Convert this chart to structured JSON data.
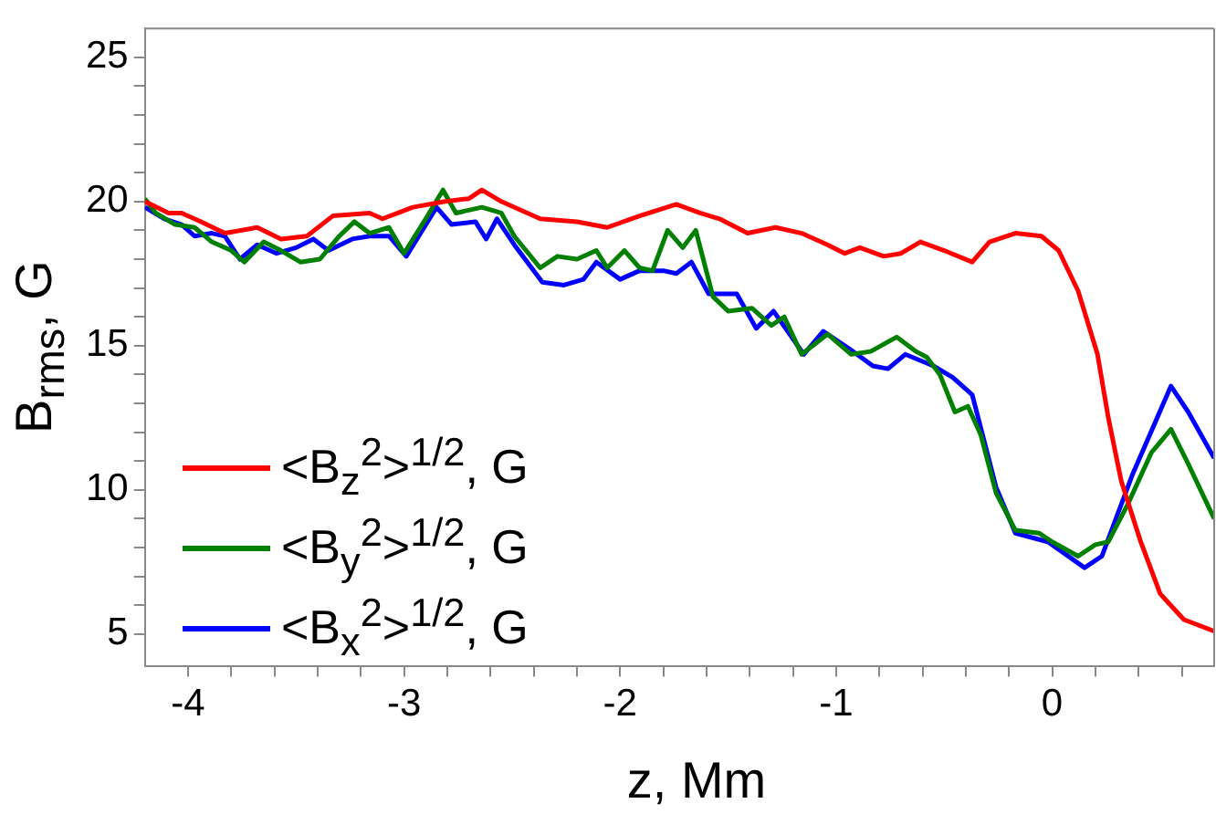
{
  "chart_data": {
    "type": "line",
    "xlabel": "z, Mm",
    "ylabel": "B$_{rms}$, G",
    "xlim": [
      -4.2,
      0.75
    ],
    "ylim": [
      3.9,
      26
    ],
    "xticks": [
      -4,
      {
        "value": -3.8,
        "label": null
      },
      {
        "value": -3.6,
        "label": null
      },
      {
        "value": -3.4,
        "label": null
      },
      {
        "value": -3.2,
        "label": null
      },
      -3,
      {
        "value": -2.8,
        "label": null
      },
      {
        "value": -2.6,
        "label": null
      },
      {
        "value": -2.4,
        "label": null
      },
      {
        "value": -2.2,
        "label": null
      },
      -2,
      {
        "value": -1.8,
        "label": null
      },
      {
        "value": -1.6,
        "label": null
      },
      {
        "value": -1.4,
        "label": null
      },
      {
        "value": -1.2,
        "label": null
      },
      -1,
      {
        "value": -0.8,
        "label": null
      },
      {
        "value": -0.6,
        "label": null
      },
      {
        "value": -0.4,
        "label": null
      },
      {
        "value": -0.2,
        "label": null
      },
      0,
      {
        "value": 0.2,
        "label": null
      },
      {
        "value": 0.4,
        "label": null
      },
      {
        "value": 0.6,
        "label": null
      }
    ],
    "yticks": [
      5,
      {
        "value": 6,
        "label": null
      },
      {
        "value": 7,
        "label": null
      },
      {
        "value": 8,
        "label": null
      },
      {
        "value": 9,
        "label": null
      },
      10,
      {
        "value": 11,
        "label": null
      },
      {
        "value": 12,
        "label": null
      },
      {
        "value": 13,
        "label": null
      },
      {
        "value": 14,
        "label": null
      },
      15,
      {
        "value": 16,
        "label": null
      },
      {
        "value": 17,
        "label": null
      },
      {
        "value": 18,
        "label": null
      },
      {
        "value": 19,
        "label": null
      },
      20,
      {
        "value": 21,
        "label": null
      },
      {
        "value": 22,
        "label": null
      },
      {
        "value": 23,
        "label": null
      },
      {
        "value": 24,
        "label": null
      },
      25
    ],
    "grid": false,
    "legend": "bottom left",
    "marker": "none",
    "line_style": "solid",
    "series": [
      {
        "name": "<B$_{z}$$^{2}$>$^{1/2}$, G",
        "color": "#ff0000",
        "x": [
          -4.2,
          -4.09,
          -4.03,
          -3.94,
          -3.83,
          -3.68,
          -3.57,
          -3.45,
          -3.33,
          -3.16,
          -3.1,
          -2.96,
          -2.81,
          -2.7,
          -2.64,
          -2.55,
          -2.37,
          -2.2,
          -2.06,
          -1.91,
          -1.74,
          -1.63,
          -1.54,
          -1.41,
          -1.28,
          -1.16,
          -1.04,
          -0.96,
          -0.89,
          -0.78,
          -0.7,
          -0.61,
          -0.5,
          -0.37,
          -0.29,
          -0.17,
          -0.05,
          0.03,
          0.12,
          0.21,
          0.26,
          0.32,
          0.41,
          0.5,
          0.61,
          0.75
        ],
        "values": [
          20,
          19.6,
          19.6,
          19.3,
          18.9,
          19.1,
          18.7,
          18.8,
          19.5,
          19.6,
          19.4,
          19.8,
          20,
          20.1,
          20.4,
          20,
          19.4,
          19.3,
          19.1,
          19.5,
          19.9,
          19.6,
          19.4,
          18.9,
          19.1,
          18.9,
          18.5,
          18.2,
          18.4,
          18.1,
          18.2,
          18.6,
          18.3,
          17.9,
          18.6,
          18.9,
          18.8,
          18.3,
          16.9,
          14.7,
          12.5,
          10.3,
          8.2,
          6.4,
          5.5,
          5.1
        ]
      },
      {
        "name": "<B$_{y}$$^{2}$>$^{1/2}$, G",
        "color": "#008000",
        "x": [
          -4.2,
          -4.15,
          -4.06,
          -3.97,
          -3.89,
          -3.8,
          -3.74,
          -3.65,
          -3.57,
          -3.48,
          -3.39,
          -3.3,
          -3.23,
          -3.16,
          -3.07,
          -3,
          -2.9,
          -2.82,
          -2.76,
          -2.64,
          -2.55,
          -2.49,
          -2.37,
          -2.29,
          -2.2,
          -2.11,
          -2.06,
          -1.98,
          -1.91,
          -1.85,
          -1.78,
          -1.71,
          -1.65,
          -1.57,
          -1.5,
          -1.39,
          -1.3,
          -1.24,
          -1.16,
          -1.04,
          -0.93,
          -0.84,
          -0.72,
          -0.63,
          -0.58,
          -0.52,
          -0.45,
          -0.39,
          -0.33,
          -0.26,
          -0.17,
          -0.06,
          0,
          0.12,
          0.2,
          0.26,
          0.35,
          0.46,
          0.55,
          0.63,
          0.75
        ],
        "values": [
          20.1,
          19.6,
          19.2,
          19.1,
          18.6,
          18.3,
          17.9,
          18.6,
          18.3,
          17.9,
          18,
          18.8,
          19.3,
          18.9,
          19.1,
          18.2,
          19.4,
          20.4,
          19.6,
          19.8,
          19.6,
          18.8,
          17.7,
          18.1,
          18,
          18.3,
          17.7,
          18.3,
          17.7,
          17.6,
          19,
          18.4,
          19,
          16.7,
          16.2,
          16.3,
          15.7,
          16,
          14.7,
          15.4,
          14.7,
          14.8,
          15.3,
          14.8,
          14.6,
          14,
          12.7,
          12.9,
          11.9,
          9.9,
          8.6,
          8.5,
          8.2,
          7.7,
          8.1,
          8.2,
          9.5,
          11.3,
          12.1,
          10.9,
          9
        ]
      },
      {
        "name": "<B$_{x}$$^{2}$>$^{1/2}$, G",
        "color": "#0000ff",
        "x": [
          -4.2,
          -4.11,
          -4.03,
          -3.97,
          -3.89,
          -3.83,
          -3.76,
          -3.68,
          -3.59,
          -3.5,
          -3.42,
          -3.35,
          -3.24,
          -3.16,
          -3.07,
          -2.99,
          -2.85,
          -2.78,
          -2.67,
          -2.62,
          -2.57,
          -2.49,
          -2.36,
          -2.26,
          -2.17,
          -2.11,
          -2,
          -1.91,
          -1.8,
          -1.74,
          -1.67,
          -1.59,
          -1.46,
          -1.37,
          -1.29,
          -1.15,
          -1.06,
          -0.94,
          -0.83,
          -0.76,
          -0.68,
          -0.55,
          -0.46,
          -0.37,
          -0.26,
          -0.17,
          -0.02,
          0.15,
          0.23,
          0.37,
          0.55,
          0.63,
          0.75
        ],
        "values": [
          19.8,
          19.4,
          19.2,
          18.8,
          18.9,
          18.8,
          18,
          18.5,
          18.2,
          18.4,
          18.7,
          18.3,
          18.7,
          18.8,
          18.8,
          18.1,
          19.8,
          19.2,
          19.3,
          18.7,
          19.4,
          18.5,
          17.2,
          17.1,
          17.3,
          17.9,
          17.3,
          17.6,
          17.6,
          17.5,
          17.9,
          16.8,
          16.8,
          15.6,
          16.2,
          14.7,
          15.5,
          14.9,
          14.3,
          14.2,
          14.7,
          14.3,
          13.9,
          13.3,
          10.1,
          8.5,
          8.2,
          7.3,
          7.7,
          10.5,
          13.6,
          12.7,
          11.1
        ]
      }
    ]
  }
}
